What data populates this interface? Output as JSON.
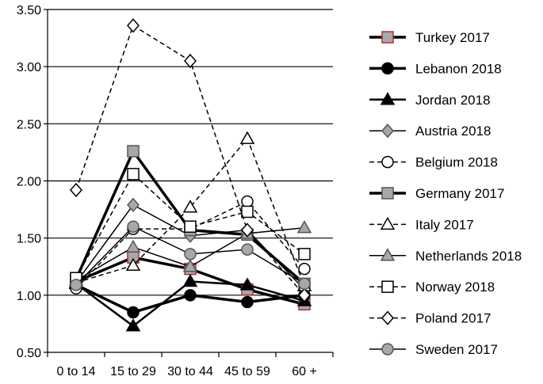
{
  "chart_data": {
    "type": "line",
    "categories": [
      "0 to 14",
      "15 to 29",
      "30 to 44",
      "45 to 59",
      "60 +"
    ],
    "ylim": [
      0.5,
      3.5
    ],
    "yticks": [
      "0.50",
      "1.00",
      "1.50",
      "2.00",
      "2.50",
      "3.00",
      "3.50"
    ],
    "grid": true,
    "legend_position": "right",
    "series": [
      {
        "name": "Turkey 2017",
        "values": [
          1.12,
          1.33,
          1.23,
          1.05,
          0.92
        ],
        "line": "solid",
        "marker": "square",
        "fill": "#a8a8a8",
        "edge": "#b03030",
        "width": 3.5
      },
      {
        "name": "Lebanon 2018",
        "values": [
          1.09,
          0.85,
          1.0,
          0.94,
          1.0
        ],
        "line": "solid",
        "marker": "circle",
        "fill": "#000000",
        "edge": "#000000",
        "width": 3.5
      },
      {
        "name": "Jordan 2018",
        "values": [
          1.1,
          0.73,
          1.12,
          1.09,
          0.95
        ],
        "line": "solid",
        "marker": "triangle",
        "fill": "#000000",
        "edge": "#000000",
        "width": 2.5
      },
      {
        "name": "Austria 2018",
        "values": [
          1.11,
          1.79,
          1.52,
          1.57,
          1.05
        ],
        "line": "solid",
        "marker": "diamond",
        "fill": "#a8a8a8",
        "edge": "#555555",
        "width": 1.5
      },
      {
        "name": "Belgium 2018",
        "values": [
          1.06,
          1.58,
          1.58,
          1.82,
          1.23
        ],
        "line": "dashed",
        "marker": "circle",
        "fill": "#ffffff",
        "edge": "#000000",
        "width": 1.5
      },
      {
        "name": "Germany 2017",
        "values": [
          1.14,
          2.26,
          1.57,
          1.53,
          1.1
        ],
        "line": "solid",
        "marker": "square",
        "fill": "#a8a8a8",
        "edge": "#555555",
        "width": 3.5
      },
      {
        "name": "Italy 2017",
        "values": [
          1.11,
          1.26,
          1.77,
          2.37,
          1.08
        ],
        "line": "dashed",
        "marker": "triangle",
        "fill": "#ffffff",
        "edge": "#000000",
        "width": 1.5
      },
      {
        "name": "Netherlands 2018",
        "values": [
          1.13,
          1.42,
          1.25,
          1.54,
          1.59
        ],
        "line": "solid",
        "marker": "triangle",
        "fill": "#a8a8a8",
        "edge": "#555555",
        "width": 1.5
      },
      {
        "name": "Norway 2018",
        "values": [
          1.15,
          2.06,
          1.6,
          1.73,
          1.36
        ],
        "line": "dashed",
        "marker": "square",
        "fill": "#ffffff",
        "edge": "#000000",
        "width": 1.5
      },
      {
        "name": "Poland 2017",
        "values": [
          1.92,
          3.36,
          3.05,
          1.57,
          1.0
        ],
        "line": "dashed",
        "marker": "diamond",
        "fill": "#ffffff",
        "edge": "#000000",
        "width": 1.5
      },
      {
        "name": "Sweden 2017",
        "values": [
          1.09,
          1.6,
          1.36,
          1.4,
          1.1
        ],
        "line": "solid",
        "marker": "circle",
        "fill": "#a8a8a8",
        "edge": "#555555",
        "width": 1.5
      }
    ]
  }
}
